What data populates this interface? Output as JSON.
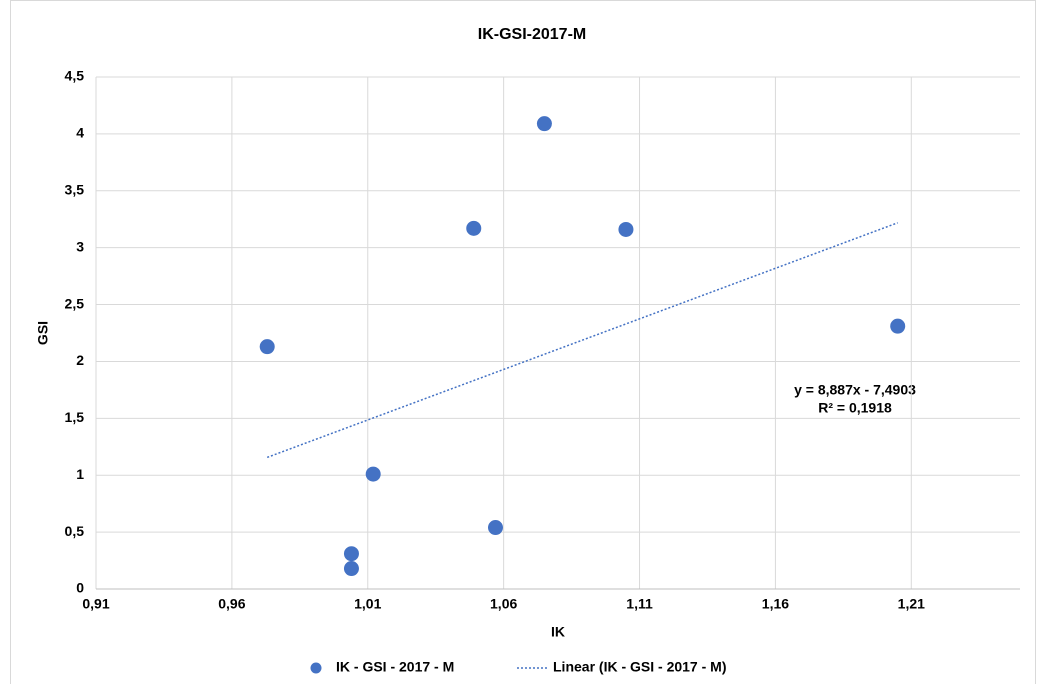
{
  "chart_data": {
    "type": "scatter",
    "title": "IK-GSI-2017-M",
    "x_label": "IK",
    "y_label": "GSI",
    "series": [
      {
        "name": "IK - GSI - 2017 - M",
        "color": "#4472c4",
        "x": [
          0.973,
          1.004,
          1.004,
          1.012,
          1.049,
          1.057,
          1.075,
          1.105,
          1.205
        ],
        "values": [
          2.13,
          0.18,
          0.31,
          1.01,
          3.17,
          0.54,
          4.09,
          3.16,
          2.31
        ]
      }
    ],
    "trendline": {
      "name": "Linear (IK - GSI - 2017 - M)",
      "color": "#4472c4",
      "slope": 8.887,
      "intercept": -7.4903,
      "equation": "y = 8,887x - 7,4903",
      "r2": "R² = 0,1918"
    },
    "xlim": [
      0.91,
      1.25
    ],
    "xticks": [
      {
        "value": 0.91,
        "label": "0,91"
      },
      {
        "value": 0.96,
        "label": "0,96"
      },
      {
        "value": 1.01,
        "label": "1,01"
      },
      {
        "value": 1.06,
        "label": "1,06"
      },
      {
        "value": 1.11,
        "label": "1,11"
      },
      {
        "value": 1.16,
        "label": "1,16"
      },
      {
        "value": 1.21,
        "label": "1,21"
      }
    ],
    "ylim": [
      0,
      4.5
    ],
    "yticks": [
      0,
      {
        "value": 0.5,
        "label": "0,5"
      },
      1,
      {
        "value": 1.5,
        "label": "1,5"
      },
      2,
      {
        "value": 2.5,
        "label": "2,5"
      },
      3,
      {
        "value": 3.5,
        "label": "3,5"
      },
      4,
      {
        "value": 4.5,
        "label": "4,5"
      }
    ],
    "grid": true
  }
}
